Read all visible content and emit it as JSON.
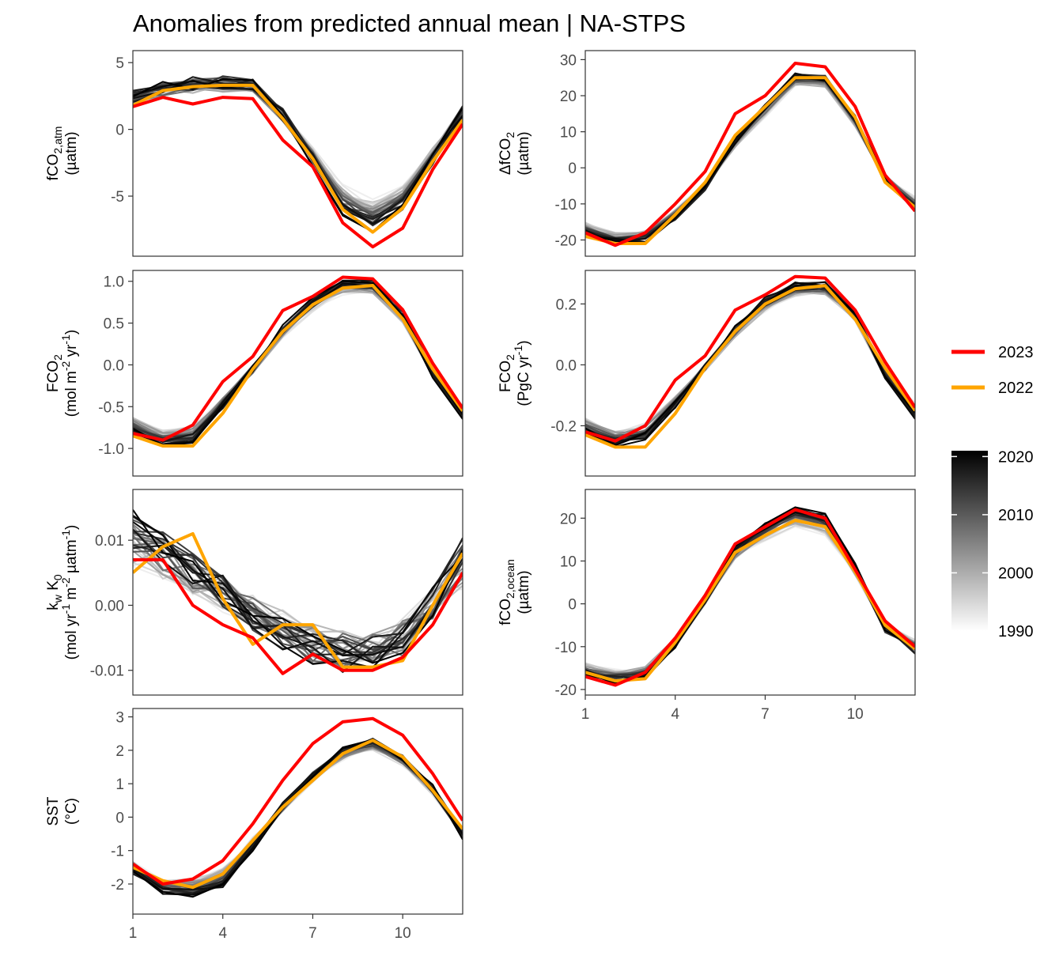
{
  "figure": {
    "title": "Anomalies from predicted annual mean | NA-STPS",
    "legend": {
      "lines": [
        {
          "label": "2023",
          "color": "#ff0000"
        },
        {
          "label": "2022",
          "color": "#ffa500"
        }
      ],
      "colorbar": {
        "ticks": [
          "2020",
          "2010",
          "2000",
          "1990"
        ],
        "range": [
          1990,
          2021
        ],
        "gradient": [
          "#000000",
          "#ffffff"
        ]
      }
    }
  },
  "chart_data": [
    {
      "type": "line",
      "id": "fco2atm",
      "ylabel": {
        "lines": [
          [
            "fCO",
            {
              "sub": "2,atm"
            }
          ],
          [
            "(µatm)"
          ]
        ]
      },
      "x": [
        1,
        2,
        3,
        4,
        5,
        6,
        7,
        8,
        9,
        10,
        11,
        12
      ],
      "xlim": [
        1,
        12
      ],
      "ylim": [
        -9.5,
        5.9
      ],
      "yticks": [
        {
          "v": 5,
          "t": "5"
        },
        {
          "v": 0,
          "t": "0"
        },
        {
          "v": -5,
          "t": "-5"
        }
      ],
      "show_xaxis": false,
      "base": [
        2.3,
        3.0,
        3.3,
        3.4,
        3.3,
        1.0,
        -2.0,
        -5.3,
        -6.4,
        -5.2,
        -2.0,
        1.3
      ],
      "amp": [
        0.07,
        0.05,
        0.05,
        0.05,
        0.06,
        0.1,
        0.15,
        0.15,
        0.15,
        0.12,
        0.1,
        0.12
      ],
      "noise": 0.5,
      "highlight": {
        "2023": [
          1.7,
          2.4,
          1.9,
          2.4,
          2.3,
          -0.8,
          -2.8,
          -7.0,
          -8.8,
          -7.4,
          -3.0,
          0.4
        ],
        "2022": [
          1.8,
          2.9,
          3.2,
          3.3,
          3.3,
          0.8,
          -2.2,
          -6.0,
          -7.7,
          -5.9,
          -2.4,
          0.7
        ]
      }
    },
    {
      "type": "line",
      "id": "dfco2",
      "ylabel": {
        "lines": [
          [
            "ΔfCO",
            {
              "sub": "2"
            }
          ],
          [
            "(µatm)"
          ]
        ]
      },
      "x": [
        1,
        2,
        3,
        4,
        5,
        6,
        7,
        8,
        9,
        10,
        11,
        12
      ],
      "xlim": [
        1,
        12
      ],
      "ylim": [
        -24.5,
        32.5
      ],
      "yticks": [
        {
          "v": 30,
          "t": "30"
        },
        {
          "v": 20,
          "t": "20"
        },
        {
          "v": 10,
          "t": "10"
        },
        {
          "v": 0,
          "t": "0"
        },
        {
          "v": -10,
          "t": "-10"
        },
        {
          "v": -20,
          "t": "-20"
        }
      ],
      "show_xaxis": false,
      "base": [
        -17,
        -19.5,
        -19,
        -13,
        -5,
        7,
        16,
        24.5,
        24,
        13,
        -3,
        -10
      ],
      "amp": [
        0.07,
        0.05,
        0.05,
        0.05,
        0.06,
        0.08,
        0.07,
        0.05,
        0.05,
        0.06,
        0.08,
        0.12
      ],
      "noise": 1.0,
      "highlight": {
        "2023": [
          -18,
          -21.5,
          -18,
          -10,
          -1,
          15,
          20,
          29,
          28,
          17,
          -2,
          -12
        ],
        "2022": [
          -19,
          -21,
          -21,
          -13,
          -4,
          9,
          17,
          25,
          25,
          14,
          -4,
          -11
        ]
      }
    },
    {
      "type": "line",
      "id": "fco2mol",
      "ylabel": {
        "lines": [
          [
            "FCO",
            {
              "sub": "2"
            }
          ],
          [
            "(mol m",
            {
              "sup": "-2"
            },
            " yr",
            {
              "sup": "-1"
            },
            ")"
          ]
        ]
      },
      "x": [
        1,
        2,
        3,
        4,
        5,
        6,
        7,
        8,
        9,
        10,
        11,
        12
      ],
      "xlim": [
        1,
        12
      ],
      "ylim": [
        -1.33,
        1.13
      ],
      "yticks": [
        {
          "v": 1.0,
          "t": "1.0"
        },
        {
          "v": 0.5,
          "t": "0.5"
        },
        {
          "v": 0.0,
          "t": "0.0"
        },
        {
          "v": -0.5,
          "t": "-0.5"
        },
        {
          "v": -1.0,
          "t": "-1.0"
        }
      ],
      "show_xaxis": false,
      "base": [
        -0.72,
        -0.88,
        -0.82,
        -0.45,
        -0.05,
        0.4,
        0.72,
        0.93,
        0.93,
        0.58,
        -0.1,
        -0.55
      ],
      "amp": [
        0.1,
        0.08,
        0.08,
        0.08,
        0.1,
        0.08,
        0.06,
        0.05,
        0.05,
        0.07,
        0.1,
        0.1
      ],
      "noise": 0.05,
      "highlight": {
        "2023": [
          -0.82,
          -0.9,
          -0.72,
          -0.2,
          0.1,
          0.65,
          0.82,
          1.05,
          1.03,
          0.66,
          0.02,
          -0.52
        ],
        "2022": [
          -0.85,
          -0.97,
          -0.97,
          -0.58,
          -0.05,
          0.4,
          0.72,
          0.92,
          0.95,
          0.55,
          -0.05,
          -0.55
        ]
      }
    },
    {
      "type": "line",
      "id": "fco2pgc",
      "ylabel": {
        "lines": [
          [
            "FCO",
            {
              "sub": "2"
            }
          ],
          [
            "(PgC yr",
            {
              "sup": "-1"
            },
            ")"
          ]
        ]
      },
      "x": [
        1,
        2,
        3,
        4,
        5,
        6,
        7,
        8,
        9,
        10,
        11,
        12
      ],
      "xlim": [
        1,
        12
      ],
      "ylim": [
        -0.365,
        0.31
      ],
      "yticks": [
        {
          "v": 0.2,
          "t": "0.2"
        },
        {
          "v": 0.0,
          "t": "0.0"
        },
        {
          "v": -0.2,
          "t": "-0.2"
        }
      ],
      "show_xaxis": false,
      "base": [
        -0.2,
        -0.24,
        -0.22,
        -0.12,
        -0.01,
        0.11,
        0.2,
        0.25,
        0.25,
        0.16,
        -0.03,
        -0.15
      ],
      "amp": [
        0.1,
        0.08,
        0.08,
        0.08,
        0.1,
        0.08,
        0.06,
        0.05,
        0.05,
        0.07,
        0.1,
        0.1
      ],
      "noise": 0.014,
      "highlight": {
        "2023": [
          -0.22,
          -0.25,
          -0.2,
          -0.05,
          0.03,
          0.18,
          0.23,
          0.29,
          0.285,
          0.18,
          0.01,
          -0.14
        ],
        "2022": [
          -0.23,
          -0.27,
          -0.27,
          -0.16,
          -0.01,
          0.11,
          0.2,
          0.25,
          0.26,
          0.15,
          -0.01,
          -0.15
        ]
      }
    },
    {
      "type": "line",
      "id": "kwk0",
      "ylabel": {
        "lines": [
          [
            "k",
            {
              "sub": "w"
            },
            " K",
            {
              "sub": "0"
            }
          ],
          [
            "(mol yr",
            {
              "sup": "-1"
            },
            " m",
            {
              "sup": "-2"
            },
            " µatm",
            {
              "sup": "-1"
            },
            ")"
          ]
        ]
      },
      "x": [
        1,
        2,
        3,
        4,
        5,
        6,
        7,
        8,
        9,
        10,
        11,
        12
      ],
      "xlim": [
        1,
        12
      ],
      "ylim": [
        -0.0138,
        0.0178
      ],
      "yticks": [
        {
          "v": 0.01,
          "t": "0.01"
        },
        {
          "v": 0.0,
          "t": "0.00"
        },
        {
          "v": -0.01,
          "t": "-0.01"
        }
      ],
      "show_xaxis": false,
      "base": [
        0.01,
        0.008,
        0.005,
        0.002,
        -0.001,
        -0.004,
        -0.006,
        -0.007,
        -0.007,
        -0.005,
        0.0,
        0.007
      ],
      "amp": [
        0.2,
        0.2,
        0.25,
        0.3,
        0.3,
        0.2,
        0.15,
        0.1,
        0.1,
        0.2,
        0.4,
        0.3
      ],
      "noise": 0.0028,
      "highlight": {
        "2023": [
          0.007,
          0.007,
          0.0,
          -0.003,
          -0.005,
          -0.0105,
          -0.0075,
          -0.01,
          -0.01,
          -0.008,
          -0.003,
          0.005
        ],
        "2022": [
          0.005,
          0.009,
          0.011,
          0.001,
          -0.006,
          -0.003,
          -0.003,
          -0.0095,
          -0.0095,
          -0.0085,
          0.0,
          0.008
        ]
      }
    },
    {
      "type": "line",
      "id": "fco2ocean",
      "ylabel": {
        "lines": [
          [
            "fCO",
            {
              "sub": "2,ocean"
            }
          ],
          [
            "(µatm)"
          ]
        ]
      },
      "x": [
        1,
        2,
        3,
        4,
        5,
        6,
        7,
        8,
        9,
        10,
        11,
        12
      ],
      "xlim": [
        1,
        12
      ],
      "ylim": [
        -21.3,
        26.7
      ],
      "yticks": [
        {
          "v": 20,
          "t": "20"
        },
        {
          "v": 10,
          "t": "10"
        },
        {
          "v": 0,
          "t": "0"
        },
        {
          "v": -10,
          "t": "-10"
        },
        {
          "v": -20,
          "t": "-20"
        }
      ],
      "show_xaxis": true,
      "xticks": [
        {
          "v": 1,
          "t": "1"
        },
        {
          "v": 4,
          "t": "4"
        },
        {
          "v": 7,
          "t": "7"
        },
        {
          "v": 10,
          "t": "10"
        }
      ],
      "base": [
        -15.5,
        -17,
        -16,
        -9,
        1,
        12,
        17,
        20.5,
        18.5,
        8,
        -5.5,
        -10
      ],
      "amp": [
        0.07,
        0.05,
        0.05,
        0.08,
        0.15,
        0.08,
        0.08,
        0.09,
        0.09,
        0.08,
        0.08,
        0.1
      ],
      "noise": 1.0,
      "highlight": {
        "2023": [
          -17,
          -19,
          -16,
          -8,
          2,
          14,
          18,
          22,
          20,
          8,
          -4,
          -10
        ],
        "2022": [
          -16,
          -18,
          -17.5,
          -9,
          1,
          12,
          16,
          19.5,
          18,
          7.5,
          -5,
          -10.5
        ]
      }
    },
    {
      "type": "line",
      "id": "sst",
      "ylabel": {
        "lines": [
          [
            "SST"
          ],
          [
            "(°C)"
          ]
        ]
      },
      "x": [
        1,
        2,
        3,
        4,
        5,
        6,
        7,
        8,
        9,
        10,
        11,
        12
      ],
      "xlim": [
        1,
        12
      ],
      "ylim": [
        -2.9,
        3.25
      ],
      "yticks": [
        {
          "v": 3,
          "t": "3"
        },
        {
          "v": 2,
          "t": "2"
        },
        {
          "v": 1,
          "t": "1"
        },
        {
          "v": 0,
          "t": "0"
        },
        {
          "v": -1,
          "t": "-1"
        },
        {
          "v": -2,
          "t": "-2"
        }
      ],
      "show_xaxis": true,
      "xticks": [
        {
          "v": 1,
          "t": "1"
        },
        {
          "v": 4,
          "t": "4"
        },
        {
          "v": 7,
          "t": "7"
        },
        {
          "v": 10,
          "t": "10"
        }
      ],
      "base": [
        -1.5,
        -2.1,
        -2.1,
        -1.8,
        -0.8,
        0.3,
        1.2,
        1.9,
        2.2,
        1.7,
        0.8,
        -0.5
      ],
      "amp": [
        0.08,
        0.06,
        0.1,
        0.12,
        0.12,
        0.1,
        0.06,
        0.05,
        0.05,
        0.05,
        0.08,
        0.15
      ],
      "noise": 0.12,
      "highlight": {
        "2023": [
          -1.4,
          -2.0,
          -1.85,
          -1.3,
          -0.2,
          1.1,
          2.2,
          2.85,
          2.95,
          2.45,
          1.3,
          -0.1
        ],
        "2022": [
          -1.5,
          -1.9,
          -2.1,
          -1.7,
          -0.7,
          0.3,
          1.1,
          1.9,
          2.3,
          1.8,
          0.8,
          -0.35
        ]
      }
    }
  ]
}
